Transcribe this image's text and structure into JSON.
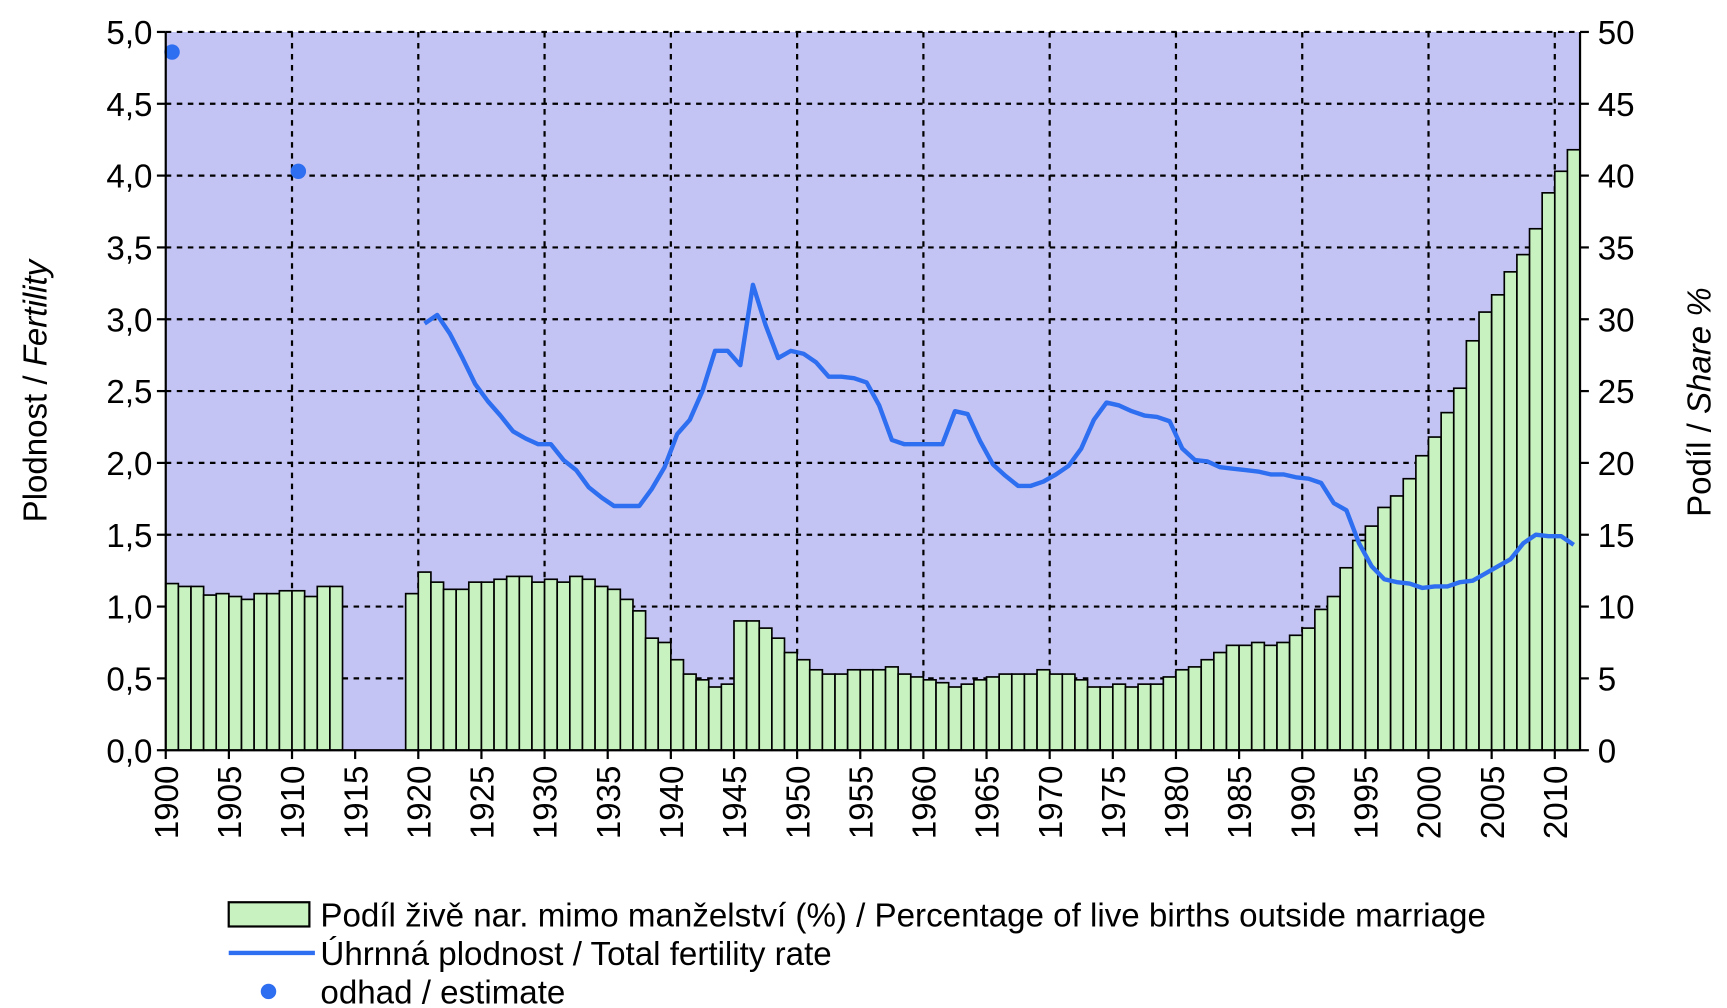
{
  "chart_data": {
    "type": "combo",
    "ylabel": [
      "Plodnost / ",
      "Fertility"
    ],
    "y2label": [
      "Podíl / ",
      "Share %"
    ],
    "xlim": [
      1900,
      2012
    ],
    "xticks": [
      1900,
      1905,
      1910,
      1915,
      1920,
      1925,
      1930,
      1935,
      1940,
      1945,
      1950,
      1955,
      1960,
      1965,
      1970,
      1975,
      1980,
      1985,
      1990,
      1995,
      2000,
      2005,
      2010
    ],
    "ylim": [
      0,
      5
    ],
    "yticks": [
      {
        "value": 0,
        "label": "0,0"
      },
      {
        "value": 0.5,
        "label": "0,5"
      },
      {
        "value": 1,
        "label": "1,0"
      },
      {
        "value": 1.5,
        "label": "1,5"
      },
      {
        "value": 2,
        "label": "2,0"
      },
      {
        "value": 2.5,
        "label": "2,5"
      },
      {
        "value": 3,
        "label": "3,0"
      },
      {
        "value": 3.5,
        "label": "3,5"
      },
      {
        "value": 4,
        "label": "4,0"
      },
      {
        "value": 4.5,
        "label": "4,5"
      },
      {
        "value": 5,
        "label": "5,0"
      }
    ],
    "y2lim": [
      0,
      50
    ],
    "y2ticks": [
      0,
      5,
      10,
      15,
      20,
      25,
      30,
      35,
      40,
      45,
      50
    ],
    "grid": true,
    "background": "#c4c4f4",
    "series": [
      {
        "name": "Podíl živě nar. mimo manželství (%) / Percentage of live births outside marriage",
        "type": "bar",
        "axis": "y2",
        "color": "#c8f2c0",
        "x": [
          1900,
          1901,
          1902,
          1903,
          1904,
          1905,
          1906,
          1907,
          1908,
          1909,
          1910,
          1911,
          1912,
          1913,
          1914,
          1915,
          1916,
          1917,
          1918,
          1919,
          1920,
          1921,
          1922,
          1923,
          1924,
          1925,
          1926,
          1927,
          1928,
          1929,
          1930,
          1931,
          1932,
          1933,
          1934,
          1935,
          1936,
          1937,
          1938,
          1939,
          1940,
          1941,
          1942,
          1943,
          1944,
          1945,
          1946,
          1947,
          1948,
          1949,
          1950,
          1951,
          1952,
          1953,
          1954,
          1955,
          1956,
          1957,
          1958,
          1959,
          1960,
          1961,
          1962,
          1963,
          1964,
          1965,
          1966,
          1967,
          1968,
          1969,
          1970,
          1971,
          1972,
          1973,
          1974,
          1975,
          1976,
          1977,
          1978,
          1979,
          1980,
          1981,
          1982,
          1983,
          1984,
          1985,
          1986,
          1987,
          1988,
          1989,
          1990,
          1991,
          1992,
          1993,
          1994,
          1995,
          1996,
          1997,
          1998,
          1999,
          2000,
          2001,
          2002,
          2003,
          2004,
          2005,
          2006,
          2007,
          2008,
          2009,
          2010,
          2011
        ],
        "values": [
          11.6,
          11.4,
          11.4,
          10.8,
          10.9,
          10.7,
          10.5,
          10.9,
          10.9,
          11.1,
          11.1,
          10.7,
          11.4,
          11.4,
          null,
          null,
          null,
          null,
          null,
          10.9,
          12.4,
          11.7,
          11.2,
          11.2,
          11.7,
          11.7,
          11.9,
          12.1,
          12.1,
          11.7,
          11.9,
          11.7,
          12.1,
          11.9,
          11.4,
          11.2,
          10.5,
          9.7,
          7.8,
          7.5,
          6.3,
          5.3,
          4.9,
          4.4,
          4.6,
          9.0,
          9.0,
          8.5,
          7.8,
          6.8,
          6.3,
          5.6,
          5.3,
          5.3,
          5.6,
          5.6,
          5.6,
          5.8,
          5.3,
          5.1,
          4.9,
          4.7,
          4.4,
          4.6,
          4.9,
          5.1,
          5.3,
          5.3,
          5.3,
          5.6,
          5.3,
          5.3,
          4.9,
          4.4,
          4.4,
          4.6,
          4.4,
          4.6,
          4.6,
          5.1,
          5.6,
          5.8,
          6.3,
          6.8,
          7.3,
          7.3,
          7.5,
          7.3,
          7.5,
          8.0,
          8.5,
          9.8,
          10.7,
          12.7,
          14.6,
          15.6,
          16.9,
          17.7,
          18.9,
          20.5,
          21.8,
          23.5,
          25.2,
          28.5,
          30.5,
          31.7,
          33.3,
          34.5,
          36.3,
          38.8,
          40.3,
          41.8
        ]
      },
      {
        "name": "Úhrnná plodnost / Total fertility rate",
        "type": "line",
        "color": "#2e6ef0",
        "x": [
          1920,
          1921,
          1922,
          1923,
          1924,
          1925,
          1926,
          1927,
          1928,
          1929,
          1930,
          1931,
          1932,
          1933,
          1934,
          1935,
          1936,
          1937,
          1938,
          1939,
          1940,
          1941,
          1942,
          1943,
          1944,
          1945,
          1946,
          1947,
          1948,
          1949,
          1950,
          1951,
          1952,
          1953,
          1954,
          1955,
          1956,
          1957,
          1958,
          1959,
          1960,
          1961,
          1962,
          1963,
          1964,
          1965,
          1966,
          1967,
          1968,
          1969,
          1970,
          1971,
          1972,
          1973,
          1974,
          1975,
          1976,
          1977,
          1978,
          1979,
          1980,
          1981,
          1982,
          1983,
          1984,
          1985,
          1986,
          1987,
          1988,
          1989,
          1990,
          1991,
          1992,
          1993,
          1994,
          1995,
          1996,
          1997,
          1998,
          1999,
          2000,
          2001,
          2002,
          2003,
          2004,
          2005,
          2006,
          2007,
          2008,
          2009,
          2010,
          2011
        ],
        "values": [
          2.97,
          3.03,
          2.9,
          2.73,
          2.55,
          2.43,
          2.33,
          2.22,
          2.17,
          2.13,
          2.13,
          2.02,
          1.95,
          1.83,
          1.76,
          1.7,
          1.7,
          1.7,
          1.82,
          1.97,
          2.2,
          2.3,
          2.5,
          2.78,
          2.78,
          2.68,
          3.24,
          2.96,
          2.73,
          2.78,
          2.76,
          2.7,
          2.6,
          2.6,
          2.59,
          2.56,
          2.4,
          2.16,
          2.13,
          2.13,
          2.13,
          2.13,
          2.36,
          2.34,
          2.15,
          1.99,
          1.91,
          1.84,
          1.84,
          1.87,
          1.92,
          1.98,
          2.1,
          2.3,
          2.42,
          2.4,
          2.36,
          2.33,
          2.32,
          2.29,
          2.1,
          2.02,
          2.01,
          1.97,
          1.96,
          1.95,
          1.94,
          1.92,
          1.92,
          1.9,
          1.89,
          1.86,
          1.72,
          1.67,
          1.44,
          1.28,
          1.19,
          1.17,
          1.16,
          1.13,
          1.14,
          1.14,
          1.17,
          1.18,
          1.23,
          1.28,
          1.33,
          1.44,
          1.5,
          1.49,
          1.49,
          1.43
        ]
      },
      {
        "name": "odhad / estimate",
        "type": "scatter",
        "color": "#2e6ef0",
        "x": [
          1900,
          1910
        ],
        "values": [
          4.86,
          4.03
        ]
      }
    ]
  }
}
